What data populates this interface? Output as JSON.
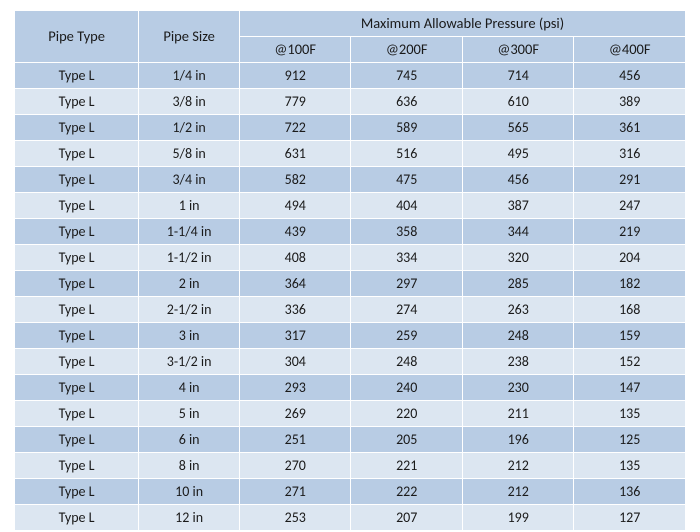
{
  "table": {
    "header": {
      "pipe_type": "Pipe Type",
      "pipe_size": "Pipe Size",
      "group": "Maximum Allowable Pressure (psi)",
      "p100": "@100F",
      "p200": "@200F",
      "p300": "@300F",
      "p400": "@400F"
    },
    "rows": [
      {
        "type": "Type L",
        "size": "1/4 in",
        "p100": "912",
        "p200": "745",
        "p300": "714",
        "p400": "456"
      },
      {
        "type": "Type L",
        "size": "3/8 in",
        "p100": "779",
        "p200": "636",
        "p300": "610",
        "p400": "389"
      },
      {
        "type": "Type L",
        "size": "1/2 in",
        "p100": "722",
        "p200": "589",
        "p300": "565",
        "p400": "361"
      },
      {
        "type": "Type L",
        "size": "5/8 in",
        "p100": "631",
        "p200": "516",
        "p300": "495",
        "p400": "316"
      },
      {
        "type": "Type L",
        "size": "3/4 in",
        "p100": "582",
        "p200": "475",
        "p300": "456",
        "p400": "291"
      },
      {
        "type": "Type L",
        "size": "1 in",
        "p100": "494",
        "p200": "404",
        "p300": "387",
        "p400": "247"
      },
      {
        "type": "Type L",
        "size": "1-1/4 in",
        "p100": "439",
        "p200": "358",
        "p300": "344",
        "p400": "219"
      },
      {
        "type": "Type L",
        "size": "1-1/2 in",
        "p100": "408",
        "p200": "334",
        "p300": "320",
        "p400": "204"
      },
      {
        "type": "Type L",
        "size": "2 in",
        "p100": "364",
        "p200": "297",
        "p300": "285",
        "p400": "182"
      },
      {
        "type": "Type L",
        "size": "2-1/2 in",
        "p100": "336",
        "p200": "274",
        "p300": "263",
        "p400": "168"
      },
      {
        "type": "Type L",
        "size": "3 in",
        "p100": "317",
        "p200": "259",
        "p300": "248",
        "p400": "159"
      },
      {
        "type": "Type L",
        "size": "3-1/2 in",
        "p100": "304",
        "p200": "248",
        "p300": "238",
        "p400": "152"
      },
      {
        "type": "Type L",
        "size": "4 in",
        "p100": "293",
        "p200": "240",
        "p300": "230",
        "p400": "147"
      },
      {
        "type": "Type L",
        "size": "5 in",
        "p100": "269",
        "p200": "220",
        "p300": "211",
        "p400": "135"
      },
      {
        "type": "Type L",
        "size": "6 in",
        "p100": "251",
        "p200": "205",
        "p300": "196",
        "p400": "125"
      },
      {
        "type": "Type L",
        "size": "8 in",
        "p100": "270",
        "p200": "221",
        "p300": "212",
        "p400": "135"
      },
      {
        "type": "Type L",
        "size": "10 in",
        "p100": "271",
        "p200": "222",
        "p300": "212",
        "p400": "136"
      },
      {
        "type": "Type L",
        "size": "12 in",
        "p100": "253",
        "p200": "207",
        "p300": "199",
        "p400": "127"
      }
    ],
    "colors": {
      "header_bg": "#b8cce4",
      "row_odd_bg": "#b8cce4",
      "row_even_bg": "#dce6f1",
      "border": "#ffffff",
      "text": "#1a1a1a"
    },
    "font_family": "Calibri",
    "font_size_pt": 11
  }
}
